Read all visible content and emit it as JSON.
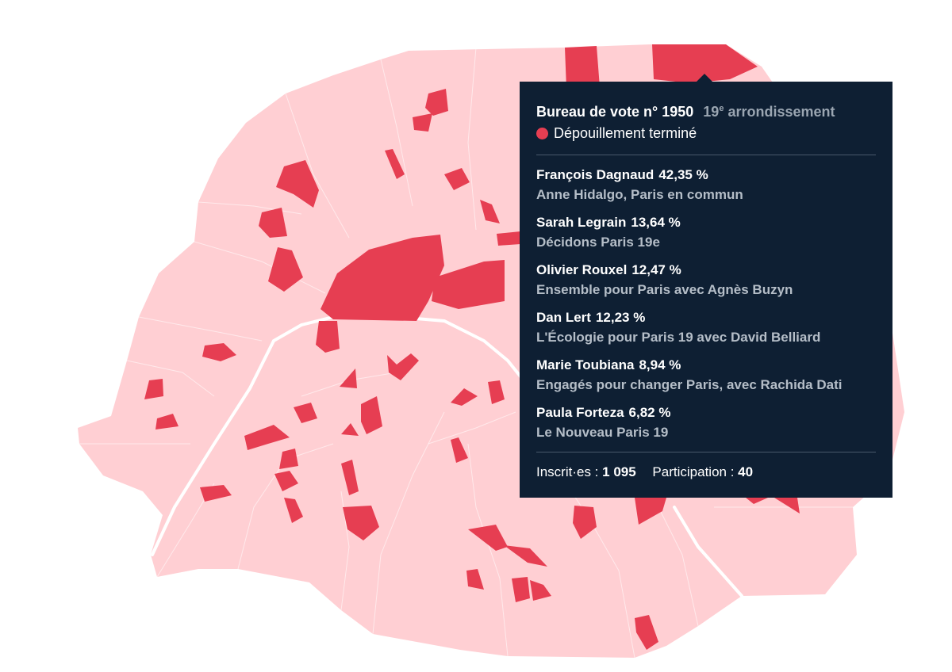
{
  "map": {
    "base_color": "#ffcfd3",
    "highlight_color": "#e63e52",
    "seine_color": "#ffffff"
  },
  "tooltip": {
    "bureau_label": "Bureau de vote n° 1950",
    "arrondissement_number": "19",
    "arrondissement_sup": "e",
    "arrondissement_label": "arrondissement",
    "status": "Dépouillement terminé",
    "status_color": "#e63e52",
    "candidates": [
      {
        "name": "François Dagnaud",
        "pct": "42,35 %",
        "list": "Anne Hidalgo, Paris en commun"
      },
      {
        "name": "Sarah Legrain",
        "pct": "13,64 %",
        "list": "Décidons Paris 19e"
      },
      {
        "name": "Olivier Rouxel",
        "pct": "12,47 %",
        "list": "Ensemble pour Paris avec Agnès Buzyn"
      },
      {
        "name": "Dan Lert",
        "pct": "12,23 %",
        "list": "L'Écologie pour Paris 19 avec David Belliard"
      },
      {
        "name": "Marie Toubiana",
        "pct": "8,94 %",
        "list": "Engagés pour changer Paris, avec Rachida Dati"
      },
      {
        "name": "Paula Forteza",
        "pct": "6,82 %",
        "list": "Le Nouveau Paris 19"
      }
    ],
    "inscrits_label": "Inscrit·es :",
    "inscrits_value": "1 095",
    "participation_label": "Participation :",
    "participation_value": "40"
  }
}
